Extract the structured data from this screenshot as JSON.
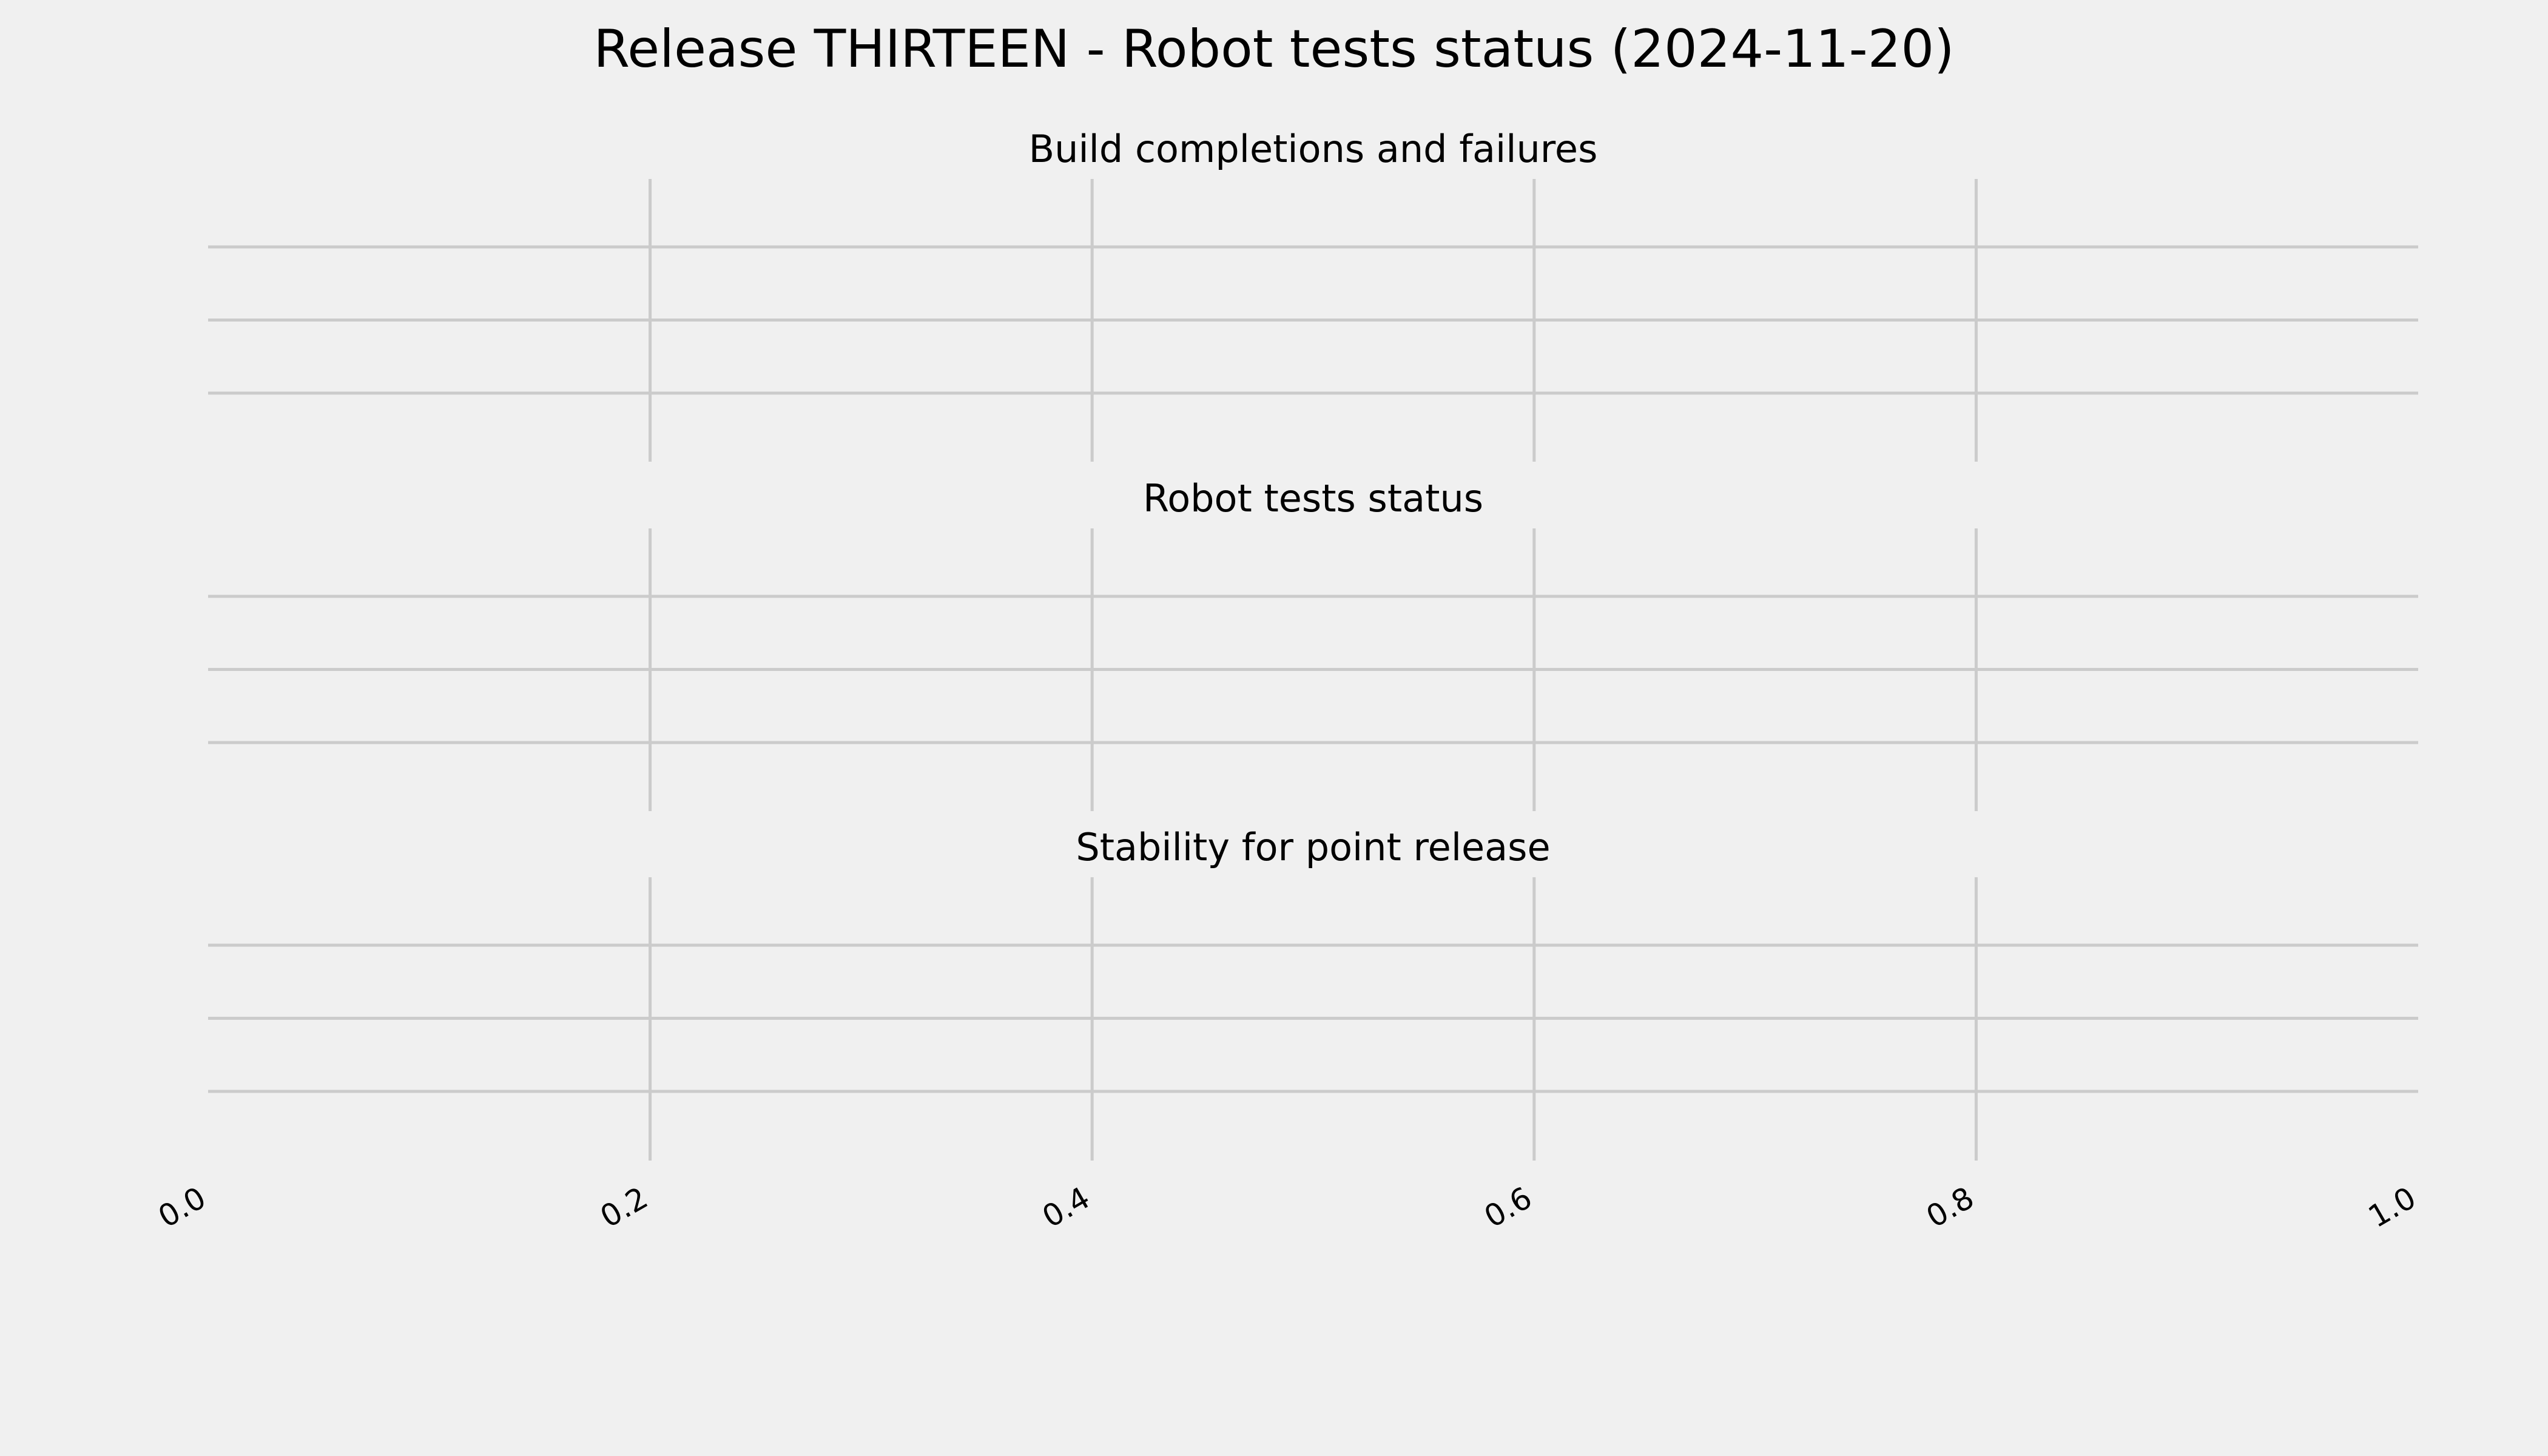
{
  "title": "Release THIRTEEN - Robot tests status (2024-11-20)",
  "colors": {
    "background": "#f0f0f0",
    "grid": "#cbcbcb",
    "text": "#000000"
  },
  "chart_data": [
    {
      "type": "line",
      "title": "Build completions and failures",
      "series": [],
      "xlim": [
        0.0,
        1.0
      ],
      "xticks": [
        "0.0",
        "0.2",
        "0.4",
        "0.6",
        "0.8",
        "1.0"
      ],
      "ytick_count": 3,
      "grid": true,
      "show_xticklabels": false
    },
    {
      "type": "line",
      "title": "Robot tests status",
      "series": [],
      "xlim": [
        0.0,
        1.0
      ],
      "xticks": [
        "0.0",
        "0.2",
        "0.4",
        "0.6",
        "0.8",
        "1.0"
      ],
      "ytick_count": 3,
      "grid": true,
      "show_xticklabels": false
    },
    {
      "type": "line",
      "title": "Stability for point release",
      "series": [],
      "xlim": [
        0.0,
        1.0
      ],
      "xticks": [
        "0.0",
        "0.2",
        "0.4",
        "0.6",
        "0.8",
        "1.0"
      ],
      "ytick_count": 3,
      "grid": true,
      "show_xticklabels": true
    }
  ]
}
